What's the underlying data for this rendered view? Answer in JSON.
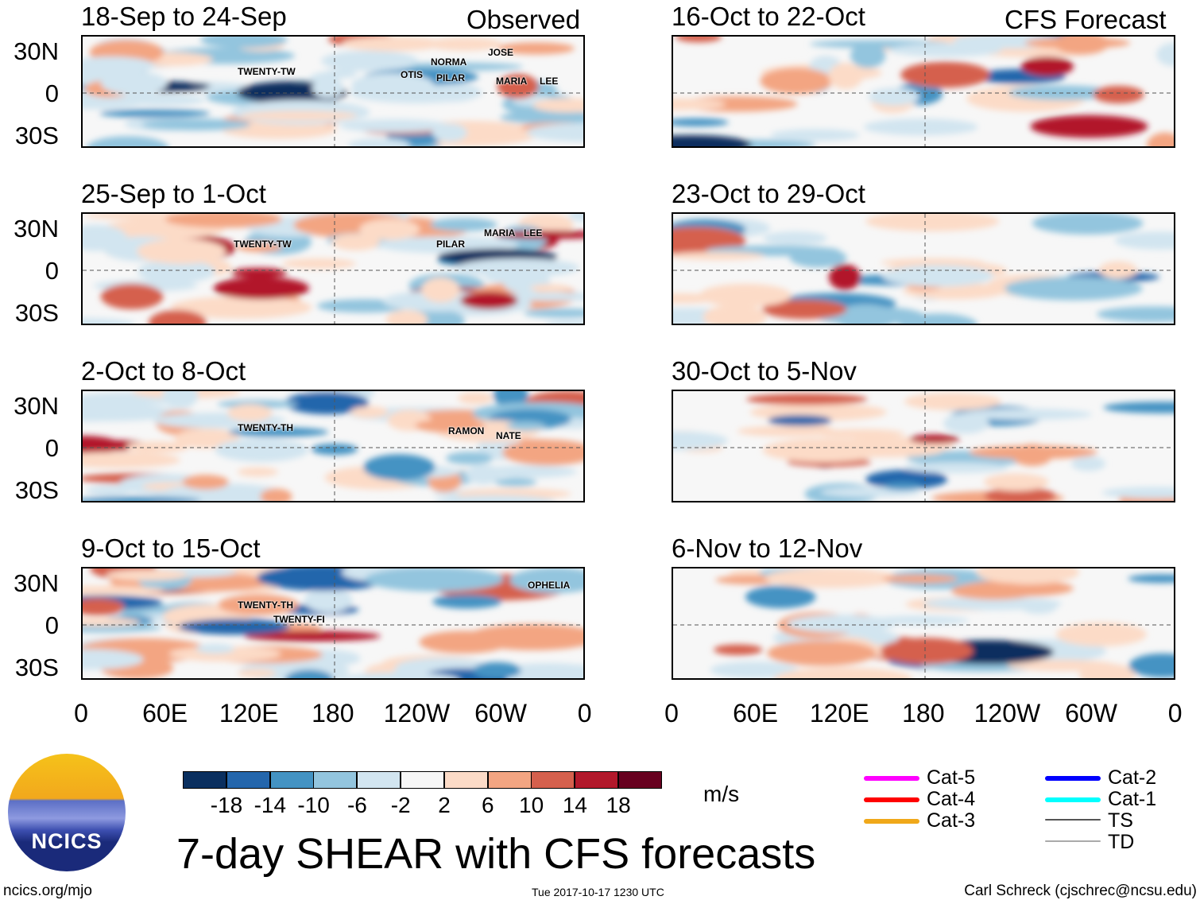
{
  "chart_data": {
    "type": "heatmap",
    "title": "7-day SHEAR with CFS forecasts",
    "units": "m/s",
    "columns": [
      {
        "heading": "Observed"
      },
      {
        "heading": "CFS Forecast"
      }
    ],
    "panels": [
      {
        "title": "18-Sep to 24-Sep",
        "kind": "observed",
        "storms": [
          "TWENTY-TW",
          "OTIS",
          "NORMA",
          "PILAR",
          "JOSE",
          "MARIA",
          "LEE"
        ]
      },
      {
        "title": "25-Sep to 1-Oct",
        "kind": "observed",
        "storms": [
          "TWENTY-TW",
          "PILAR",
          "MARIA",
          "LEE"
        ]
      },
      {
        "title": "2-Oct to 8-Oct",
        "kind": "observed",
        "storms": [
          "TWENTY-TH",
          "RAMON",
          "NATE"
        ]
      },
      {
        "title": "9-Oct to 15-Oct",
        "kind": "observed",
        "storms": [
          "TWENTY-TH",
          "TWENTY-FI",
          "OPHELIA"
        ]
      },
      {
        "title": "16-Oct to 22-Oct",
        "kind": "forecast",
        "storms": []
      },
      {
        "title": "23-Oct to 29-Oct",
        "kind": "forecast",
        "storms": []
      },
      {
        "title": "30-Oct to 5-Nov",
        "kind": "forecast",
        "storms": []
      },
      {
        "title": "6-Nov to 12-Nov",
        "kind": "forecast",
        "storms": []
      }
    ],
    "y_ticks": [
      "30N",
      "0",
      "30S"
    ],
    "x_ticks": [
      "0",
      "60E",
      "120E",
      "180",
      "120W",
      "60W",
      "0"
    ],
    "colorbar": {
      "levels": [
        "-18",
        "-14",
        "-10",
        "-6",
        "-2",
        "2",
        "6",
        "10",
        "14",
        "18"
      ],
      "colors": [
        "#0a2f5f",
        "#2466ac",
        "#4493c3",
        "#93c5de",
        "#d2e5f0",
        "#f7f7f7",
        "#fcdbc7",
        "#f3a582",
        "#d5604d",
        "#b2182b",
        "#67001f"
      ]
    },
    "legend": [
      {
        "label": "Cat-5",
        "color": "#ff00ff"
      },
      {
        "label": "Cat-4",
        "color": "#ff0000"
      },
      {
        "label": "Cat-3",
        "color": "#f0a81a"
      },
      {
        "label": "Cat-2",
        "color": "#0000ff"
      },
      {
        "label": "Cat-1",
        "color": "#00ffff"
      },
      {
        "label": "TS",
        "color": "#555555"
      },
      {
        "label": "TD",
        "color": "#aaaaaa"
      }
    ]
  },
  "footer": {
    "left": "ncics.org/mjo",
    "center": "Tue 2017-10-17 1230 UTC",
    "right": "Carl Schreck (cjschrec@ncsu.edu)",
    "logo": "NCICS"
  }
}
